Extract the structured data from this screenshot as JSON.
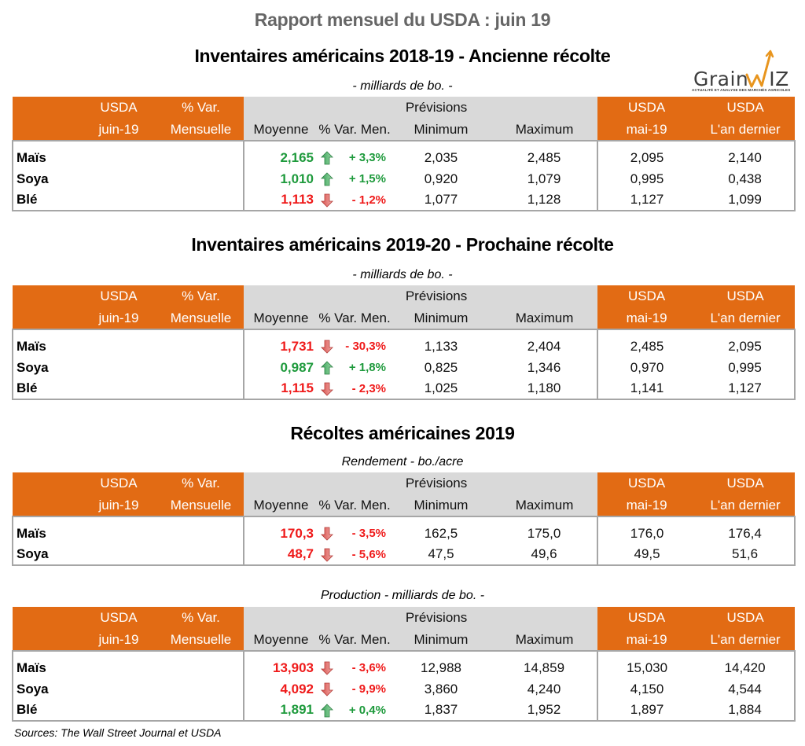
{
  "header": {
    "title": "Rapport mensuel du USDA : juin 19"
  },
  "logo": {
    "brand_left": "Grain",
    "brand_right": "IZ",
    "tagline": "ACTUALITÉ ET ANALYSE DES MARCHÉS AGRICOLES",
    "accent_color": "#e8951e"
  },
  "colors": {
    "header_orange": "#e26b14",
    "header_gray": "#d9d9d9",
    "up_green": "#1e9a3c",
    "down_red": "#ef1a1a"
  },
  "columns": {
    "usda_top": "USDA",
    "usda_bottom": "juin-19",
    "var_top": "% Var.",
    "var_bottom": "Mensuelle",
    "previsions": "Prévisions",
    "moyenne": "Moyenne",
    "var_men": "% Var. Men.",
    "minimum": "Minimum",
    "maximum": "Maximum",
    "mai_top": "USDA",
    "mai_bottom": "mai-19",
    "last_top": "USDA",
    "last_bottom": "L'an dernier"
  },
  "sections": [
    {
      "title": "Inventaires américains 2018-19 - Ancienne récolte",
      "subtitle": "- milliards de bo.  -",
      "rows": [
        {
          "name": "Maïs",
          "usda": "",
          "var": "",
          "moyenne": "2,165",
          "direction": "up",
          "var_men": "+ 3,3%",
          "minimum": "2,035",
          "maximum": "2,485",
          "mai": "2,095",
          "last": "2,140"
        },
        {
          "name": "Soya",
          "usda": "",
          "var": "",
          "moyenne": "1,010",
          "direction": "up",
          "var_men": "+ 1,5%",
          "minimum": "0,920",
          "maximum": "1,079",
          "mai": "0,995",
          "last": "0,438"
        },
        {
          "name": "Blé",
          "usda": "",
          "var": "",
          "moyenne": "1,113",
          "direction": "down",
          "var_men": "- 1,2%",
          "minimum": "1,077",
          "maximum": "1,128",
          "mai": "1,127",
          "last": "1,099"
        }
      ]
    },
    {
      "title": "Inventaires américains 2019-20 - Prochaine récolte",
      "subtitle": "- milliards de bo.  -",
      "rows": [
        {
          "name": "Maïs",
          "usda": "",
          "var": "",
          "moyenne": "1,731",
          "direction": "down",
          "var_men": "- 30,3%",
          "minimum": "1,133",
          "maximum": "2,404",
          "mai": "2,485",
          "last": "2,095"
        },
        {
          "name": "Soya",
          "usda": "",
          "var": "",
          "moyenne": "0,987",
          "direction": "up",
          "var_men": "+ 1,8%",
          "minimum": "0,825",
          "maximum": "1,346",
          "mai": "0,970",
          "last": "0,995"
        },
        {
          "name": "Blé",
          "usda": "",
          "var": "",
          "moyenne": "1,115",
          "direction": "down",
          "var_men": "- 2,3%",
          "minimum": "1,025",
          "maximum": "1,180",
          "mai": "1,141",
          "last": "1,127"
        }
      ]
    },
    {
      "title": "Récoltes américaines 2019",
      "subtitle": "Rendement - bo./acre",
      "rows": [
        {
          "name": "Maïs",
          "usda": "",
          "var": "",
          "moyenne": "170,3",
          "direction": "down",
          "var_men": "- 3,5%",
          "minimum": "162,5",
          "maximum": "175,0",
          "mai": "176,0",
          "last": "176,4"
        },
        {
          "name": "Soya",
          "usda": "",
          "var": "",
          "moyenne": "48,7",
          "direction": "down",
          "var_men": "- 5,6%",
          "minimum": "47,5",
          "maximum": "49,6",
          "mai": "49,5",
          "last": "51,6"
        }
      ]
    },
    {
      "title": "",
      "subtitle": "Production - milliards de bo. -",
      "rows": [
        {
          "name": "Maïs",
          "usda": "",
          "var": "",
          "moyenne": "13,903",
          "direction": "down",
          "var_men": "- 3,6%",
          "minimum": "12,988",
          "maximum": "14,859",
          "mai": "15,030",
          "last": "14,420"
        },
        {
          "name": "Soya",
          "usda": "",
          "var": "",
          "moyenne": "4,092",
          "direction": "down",
          "var_men": "- 9,9%",
          "minimum": "3,860",
          "maximum": "4,240",
          "mai": "4,150",
          "last": "4,544"
        },
        {
          "name": "Blé",
          "usda": "",
          "var": "",
          "moyenne": "1,891",
          "direction": "up",
          "var_men": "+ 0,4%",
          "minimum": "1,837",
          "maximum": "1,952",
          "mai": "1,897",
          "last": "1,884"
        }
      ]
    }
  ],
  "footer": {
    "sources": "Sources: The Wall Street Journal et USDA"
  }
}
